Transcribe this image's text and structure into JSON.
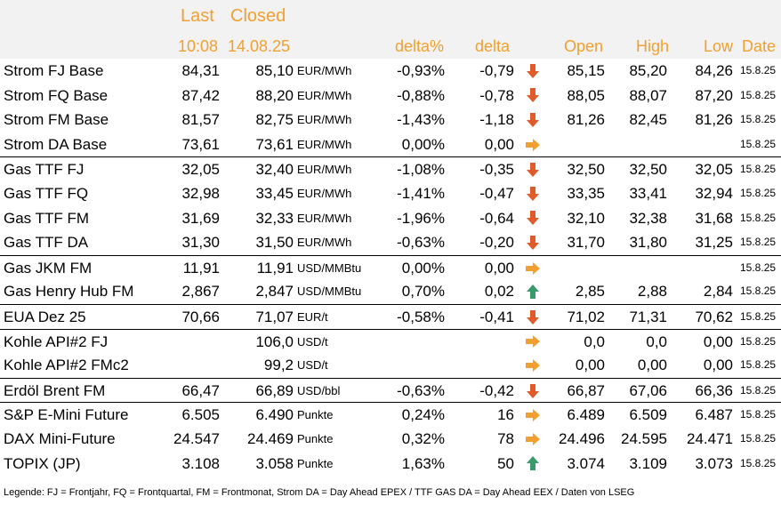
{
  "header": {
    "last_title": "Last",
    "closed_title": "Closed",
    "last_time": "10:08",
    "closed_date": "14.08.25",
    "delta_pct": "delta%",
    "delta": "delta",
    "open": "Open",
    "high": "High",
    "low": "Low",
    "date": "Date"
  },
  "colors": {
    "header_text": "#f0a030",
    "arrow_down": "#e05a2a",
    "arrow_right": "#f0a030",
    "arrow_up": "#3a9a6a"
  },
  "rows": [
    {
      "name": "Strom FJ Base",
      "last": "84,31",
      "closed": "85,10",
      "unit": "EUR/MWh",
      "delta_pct": "-0,93%",
      "delta": "-0,79",
      "trend": "down",
      "open": "85,15",
      "high": "85,20",
      "low": "84,26",
      "date": "15.8.25"
    },
    {
      "name": "Strom FQ Base",
      "last": "87,42",
      "closed": "88,20",
      "unit": "EUR/MWh",
      "delta_pct": "-0,88%",
      "delta": "-0,78",
      "trend": "down",
      "open": "88,05",
      "high": "88,07",
      "low": "87,20",
      "date": "15.8.25"
    },
    {
      "name": "Strom FM Base",
      "last": "81,57",
      "closed": "82,75",
      "unit": "EUR/MWh",
      "delta_pct": "-1,43%",
      "delta": "-1,18",
      "trend": "down",
      "open": "81,26",
      "high": "82,45",
      "low": "81,26",
      "date": "15.8.25"
    },
    {
      "name": "Strom DA Base",
      "last": "73,61",
      "closed": "73,61",
      "unit": "EUR/MWh",
      "delta_pct": "0,00%",
      "delta": "0,00",
      "trend": "right",
      "open": "",
      "high": "",
      "low": "",
      "date": "15.8.25"
    },
    {
      "name": "Gas TTF FJ",
      "last": "32,05",
      "closed": "32,40",
      "unit": "EUR/MWh",
      "delta_pct": "-1,08%",
      "delta": "-0,35",
      "trend": "down",
      "open": "32,50",
      "high": "32,50",
      "low": "32,05",
      "date": "15.8.25",
      "sep": true
    },
    {
      "name": "Gas TTF FQ",
      "last": "32,98",
      "closed": "33,45",
      "unit": "EUR/MWh",
      "delta_pct": "-1,41%",
      "delta": "-0,47",
      "trend": "down",
      "open": "33,35",
      "high": "33,41",
      "low": "32,94",
      "date": "15.8.25"
    },
    {
      "name": "Gas TTF FM",
      "last": "31,69",
      "closed": "32,33",
      "unit": "EUR/MWh",
      "delta_pct": "-1,96%",
      "delta": "-0,64",
      "trend": "down",
      "open": "32,10",
      "high": "32,38",
      "low": "31,68",
      "date": "15.8.25"
    },
    {
      "name": "Gas TTF DA",
      "last": "31,30",
      "closed": "31,50",
      "unit": "EUR/MWh",
      "delta_pct": "-0,63%",
      "delta": "-0,20",
      "trend": "down",
      "open": "31,70",
      "high": "31,80",
      "low": "31,25",
      "date": "15.8.25"
    },
    {
      "name": "Gas JKM FM",
      "last": "11,91",
      "closed": "11,91",
      "unit": "USD/MMBtu",
      "delta_pct": "0,00%",
      "delta": "0,00",
      "trend": "right",
      "open": "",
      "high": "",
      "low": "",
      "date": "15.8.25",
      "sep": true
    },
    {
      "name": "Gas Henry Hub FM",
      "last": "2,867",
      "closed": "2,847",
      "unit": "USD/MMBtu",
      "delta_pct": "0,70%",
      "delta": "0,02",
      "trend": "up",
      "open": "2,85",
      "high": "2,88",
      "low": "2,84",
      "date": "15.8.25"
    },
    {
      "name": "EUA Dez 25",
      "last": "70,66",
      "closed": "71,07",
      "unit": "EUR/t",
      "delta_pct": "-0,58%",
      "delta": "-0,41",
      "trend": "down",
      "open": "71,02",
      "high": "71,31",
      "low": "70,62",
      "date": "15.8.25",
      "sep": true
    },
    {
      "name": "Kohle API#2 FJ",
      "last": "",
      "closed": "106,0",
      "unit": "USD/t",
      "delta_pct": "",
      "delta": "",
      "trend": "right",
      "open": "0,0",
      "high": "0,0",
      "low": "0,00",
      "date": "15.8.25",
      "sep": true
    },
    {
      "name": "Kohle API#2 FMc2",
      "last": "",
      "closed": "99,2",
      "unit": "USD/t",
      "delta_pct": "",
      "delta": "",
      "trend": "right",
      "open": "0,00",
      "high": "0,00",
      "low": "0,00",
      "date": "15.8.25"
    },
    {
      "name": "Erdöl Brent FM",
      "last": "66,47",
      "closed": "66,89",
      "unit": "USD/bbl",
      "delta_pct": "-0,63%",
      "delta": "-0,42",
      "trend": "down",
      "open": "66,87",
      "high": "67,06",
      "low": "66,36",
      "date": "15.8.25",
      "sep": true
    },
    {
      "name": "S&P E-Mini Future",
      "last": "6.505",
      "closed": "6.490",
      "unit": "Punkte",
      "delta_pct": "0,24%",
      "delta": "16",
      "trend": "right",
      "open": "6.489",
      "high": "6.509",
      "low": "6.487",
      "date": "15.8.25",
      "sep": true
    },
    {
      "name": "DAX Mini-Future",
      "last": "24.547",
      "closed": "24.469",
      "unit": "Punkte",
      "delta_pct": "0,32%",
      "delta": "78",
      "trend": "right",
      "open": "24.496",
      "high": "24.595",
      "low": "24.471",
      "date": "15.8.25"
    },
    {
      "name": "TOPIX (JP)",
      "last": "3.108",
      "closed": "3.058",
      "unit": "Punkte",
      "delta_pct": "1,63%",
      "delta": "50",
      "trend": "up",
      "open": "3.074",
      "high": "3.109",
      "low": "3.073",
      "date": "15.8.25"
    }
  ],
  "legend": "Legende: FJ = Frontjahr, FQ = Frontquartal, FM = Frontmonat, Strom DA = Day Ahead EPEX / TTF GAS DA = Day Ahead EEX / Daten von LSEG"
}
